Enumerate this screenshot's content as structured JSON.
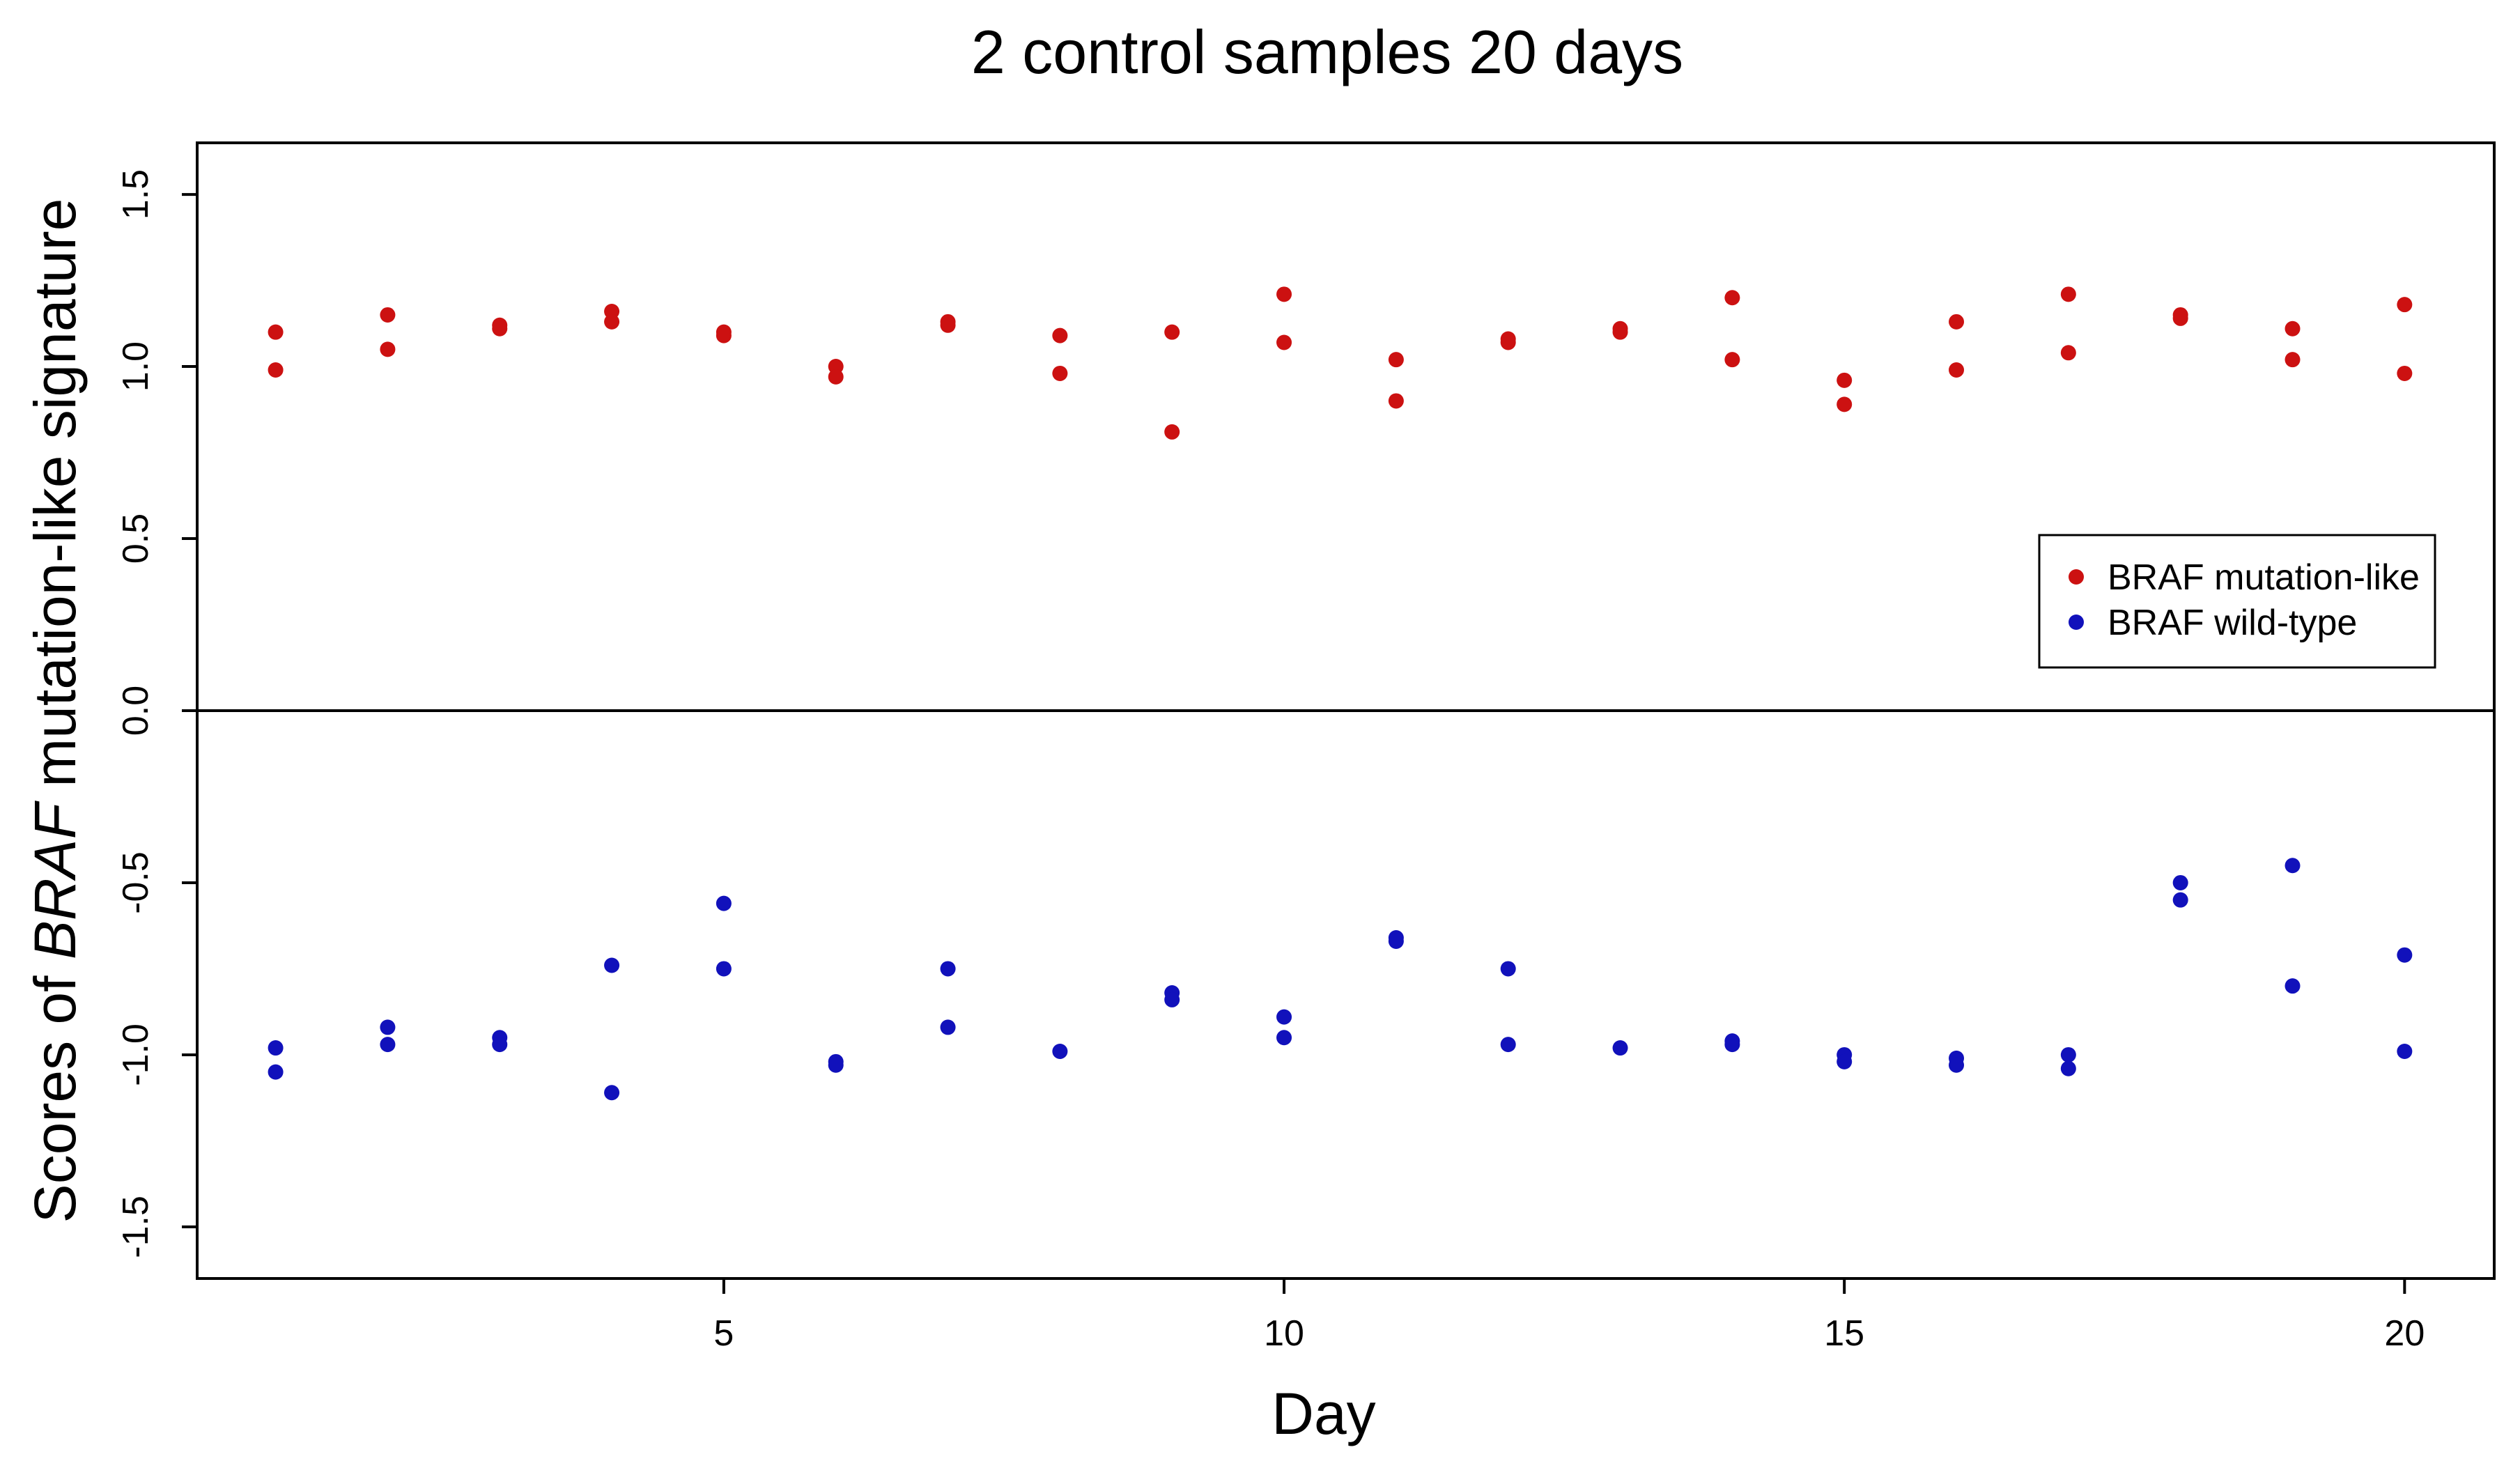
{
  "chart_data": {
    "type": "scatter",
    "title": "2 control samples 20 days",
    "xlabel": "Day",
    "ylabel": {
      "prefix": "Scores of ",
      "italic": "BRAF",
      "suffix": " mutation-like signature"
    },
    "xlim": [
      0.3,
      20.8
    ],
    "ylim": [
      -1.65,
      1.65
    ],
    "x_ticks": [
      5,
      10,
      15,
      20
    ],
    "x_tick_labels": [
      "5",
      "10",
      "15",
      "20"
    ],
    "y_ticks": [
      -1.5,
      -1.0,
      -0.5,
      0.0,
      0.5,
      1.0,
      1.5
    ],
    "y_tick_labels": [
      "-1.5",
      "-1.0",
      "-0.5",
      "0.0",
      "0.5",
      "1.0",
      "1.5"
    ],
    "reference_line": {
      "y": 0.0
    },
    "legend": {
      "position": "right, just above zero line",
      "entries": [
        "BRAF mutation-like",
        "BRAF wild-type"
      ]
    },
    "series": [
      {
        "name": "BRAF mutation-like",
        "color": "#cc1111",
        "points": [
          {
            "x": 1,
            "y": 1.1
          },
          {
            "x": 1,
            "y": 0.99
          },
          {
            "x": 2,
            "y": 1.15
          },
          {
            "x": 2,
            "y": 1.05
          },
          {
            "x": 3,
            "y": 1.12
          },
          {
            "x": 3,
            "y": 1.11
          },
          {
            "x": 4,
            "y": 1.16
          },
          {
            "x": 4,
            "y": 1.13
          },
          {
            "x": 5,
            "y": 1.1
          },
          {
            "x": 5,
            "y": 1.09
          },
          {
            "x": 6,
            "y": 1.0
          },
          {
            "x": 6,
            "y": 0.97
          },
          {
            "x": 7,
            "y": 1.13
          },
          {
            "x": 7,
            "y": 1.12
          },
          {
            "x": 8,
            "y": 1.09
          },
          {
            "x": 8,
            "y": 0.98
          },
          {
            "x": 9,
            "y": 1.1
          },
          {
            "x": 9,
            "y": 0.81
          },
          {
            "x": 10,
            "y": 1.21
          },
          {
            "x": 10,
            "y": 1.07
          },
          {
            "x": 11,
            "y": 1.02
          },
          {
            "x": 11,
            "y": 0.9
          },
          {
            "x": 12,
            "y": 1.08
          },
          {
            "x": 12,
            "y": 1.07
          },
          {
            "x": 13,
            "y": 1.11
          },
          {
            "x": 13,
            "y": 1.1
          },
          {
            "x": 14,
            "y": 1.2
          },
          {
            "x": 14,
            "y": 1.02
          },
          {
            "x": 15,
            "y": 0.96
          },
          {
            "x": 15,
            "y": 0.89
          },
          {
            "x": 16,
            "y": 1.13
          },
          {
            "x": 16,
            "y": 0.99
          },
          {
            "x": 17,
            "y": 1.21
          },
          {
            "x": 17,
            "y": 1.04
          },
          {
            "x": 18,
            "y": 1.15
          },
          {
            "x": 18,
            "y": 1.14
          },
          {
            "x": 19,
            "y": 1.11
          },
          {
            "x": 19,
            "y": 1.02
          },
          {
            "x": 20,
            "y": 1.18
          },
          {
            "x": 20,
            "y": 0.98
          }
        ]
      },
      {
        "name": "BRAF wild-type",
        "color": "#1111bb",
        "points": [
          {
            "x": 1,
            "y": -0.98
          },
          {
            "x": 1,
            "y": -1.05
          },
          {
            "x": 2,
            "y": -0.92
          },
          {
            "x": 2,
            "y": -0.97
          },
          {
            "x": 3,
            "y": -0.95
          },
          {
            "x": 3,
            "y": -0.97
          },
          {
            "x": 4,
            "y": -0.74
          },
          {
            "x": 4,
            "y": -1.11
          },
          {
            "x": 5,
            "y": -0.56
          },
          {
            "x": 5,
            "y": -0.75
          },
          {
            "x": 6,
            "y": -1.02
          },
          {
            "x": 6,
            "y": -1.03
          },
          {
            "x": 7,
            "y": -0.75
          },
          {
            "x": 7,
            "y": -0.92
          },
          {
            "x": 8,
            "y": -0.99
          },
          {
            "x": 9,
            "y": -0.82
          },
          {
            "x": 9,
            "y": -0.84
          },
          {
            "x": 10,
            "y": -0.89
          },
          {
            "x": 10,
            "y": -0.95
          },
          {
            "x": 11,
            "y": -0.66
          },
          {
            "x": 11,
            "y": -0.67
          },
          {
            "x": 12,
            "y": -0.75
          },
          {
            "x": 12,
            "y": -0.97
          },
          {
            "x": 13,
            "y": -0.98
          },
          {
            "x": 14,
            "y": -0.96
          },
          {
            "x": 14,
            "y": -0.97
          },
          {
            "x": 15,
            "y": -1.0
          },
          {
            "x": 15,
            "y": -1.02
          },
          {
            "x": 16,
            "y": -1.01
          },
          {
            "x": 16,
            "y": -1.03
          },
          {
            "x": 17,
            "y": -1.0
          },
          {
            "x": 17,
            "y": -1.04
          },
          {
            "x": 18,
            "y": -0.5
          },
          {
            "x": 18,
            "y": -0.55
          },
          {
            "x": 19,
            "y": -0.45
          },
          {
            "x": 19,
            "y": -0.8
          },
          {
            "x": 20,
            "y": -0.71
          },
          {
            "x": 20,
            "y": -0.99
          }
        ]
      }
    ]
  }
}
